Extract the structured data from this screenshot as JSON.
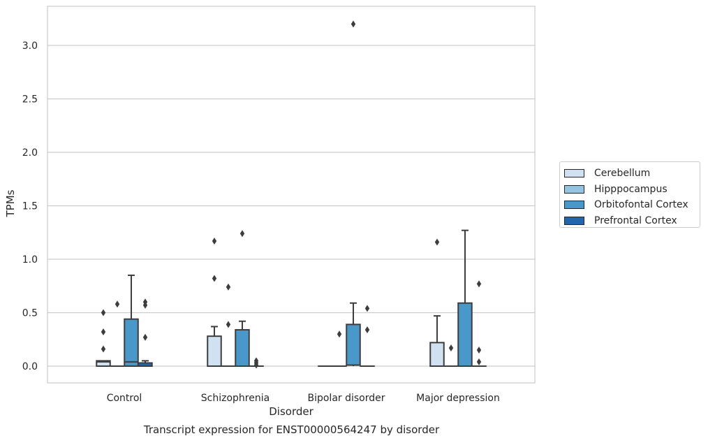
{
  "chart_data": {
    "type": "box",
    "title": "Transcript expression for ENST00000564247 by disorder",
    "xlabel": "Disorder",
    "ylabel": "TPMs",
    "ylim": [
      -0.16,
      3.37
    ],
    "yticks": [
      0.0,
      0.5,
      1.0,
      1.5,
      2.0,
      2.5,
      3.0
    ],
    "ytick_labels": [
      "0.0",
      "0.5",
      "1.0",
      "1.5",
      "2.0",
      "2.5",
      "3.0"
    ],
    "grid": true,
    "legend_position": "right",
    "categories": [
      "Control",
      "Schizophrenia",
      "Bipolar disorder",
      "Major depression"
    ],
    "series": [
      {
        "name": "Cerebellum",
        "color": "#d0e1f2",
        "boxes": [
          {
            "q1": 0.0,
            "median": 0.04,
            "q3": 0.05,
            "whisker_low": 0.0,
            "whisker_high": 0.05,
            "outliers": [
              0.5,
              0.32,
              0.16
            ]
          },
          {
            "q1": 0.0,
            "median": 0.0,
            "q3": 0.28,
            "whisker_low": 0.0,
            "whisker_high": 0.37,
            "outliers": [
              1.17,
              0.82
            ]
          },
          {
            "q1": 0.0,
            "median": 0.0,
            "q3": 0.0,
            "whisker_low": 0.0,
            "whisker_high": 0.0,
            "outliers": []
          },
          {
            "q1": 0.0,
            "median": 0.0,
            "q3": 0.22,
            "whisker_low": 0.0,
            "whisker_high": 0.47,
            "outliers": [
              1.16
            ]
          }
        ]
      },
      {
        "name": "Hipppocampus",
        "color": "#94c4df",
        "boxes": [
          {
            "q1": 0.0,
            "median": 0.0,
            "q3": 0.0,
            "whisker_low": 0.0,
            "whisker_high": 0.0,
            "outliers": [
              0.58
            ]
          },
          {
            "q1": 0.0,
            "median": 0.0,
            "q3": 0.0,
            "whisker_low": 0.0,
            "whisker_high": 0.0,
            "outliers": [
              0.74,
              0.39
            ]
          },
          {
            "q1": 0.0,
            "median": 0.0,
            "q3": 0.0,
            "whisker_low": 0.0,
            "whisker_high": 0.0,
            "outliers": [
              0.3
            ]
          },
          {
            "q1": 0.0,
            "median": 0.0,
            "q3": 0.0,
            "whisker_low": 0.0,
            "whisker_high": 0.0,
            "outliers": [
              0.17
            ]
          }
        ]
      },
      {
        "name": "Orbitofontal Cortex",
        "color": "#4a98c9",
        "boxes": [
          {
            "q1": 0.0,
            "median": 0.04,
            "q3": 0.44,
            "whisker_low": 0.0,
            "whisker_high": 0.85,
            "outliers": []
          },
          {
            "q1": 0.0,
            "median": 0.0,
            "q3": 0.34,
            "whisker_low": 0.0,
            "whisker_high": 0.42,
            "outliers": [
              1.24
            ]
          },
          {
            "q1": 0.01,
            "median": 0.01,
            "q3": 0.39,
            "whisker_low": 0.0,
            "whisker_high": 0.59,
            "outliers": [
              3.2
            ]
          },
          {
            "q1": 0.0,
            "median": 0.0,
            "q3": 0.59,
            "whisker_low": 0.0,
            "whisker_high": 1.27,
            "outliers": []
          }
        ]
      },
      {
        "name": "Prefrontal Cortex",
        "color": "#2166ac",
        "boxes": [
          {
            "q1": 0.0,
            "median": 0.0,
            "q3": 0.03,
            "whisker_low": 0.0,
            "whisker_high": 0.05,
            "outliers": [
              0.6,
              0.57,
              0.27
            ]
          },
          {
            "q1": 0.0,
            "median": 0.0,
            "q3": 0.0,
            "whisker_low": 0.0,
            "whisker_high": 0.0,
            "outliers": [
              0.05,
              0.03,
              0.01
            ]
          },
          {
            "q1": 0.0,
            "median": 0.0,
            "q3": 0.0,
            "whisker_low": 0.0,
            "whisker_high": 0.0,
            "outliers": [
              0.54,
              0.34
            ]
          },
          {
            "q1": 0.0,
            "median": 0.0,
            "q3": 0.0,
            "whisker_low": 0.0,
            "whisker_high": 0.0,
            "outliers": [
              0.77,
              0.15,
              0.04
            ]
          }
        ]
      }
    ]
  }
}
